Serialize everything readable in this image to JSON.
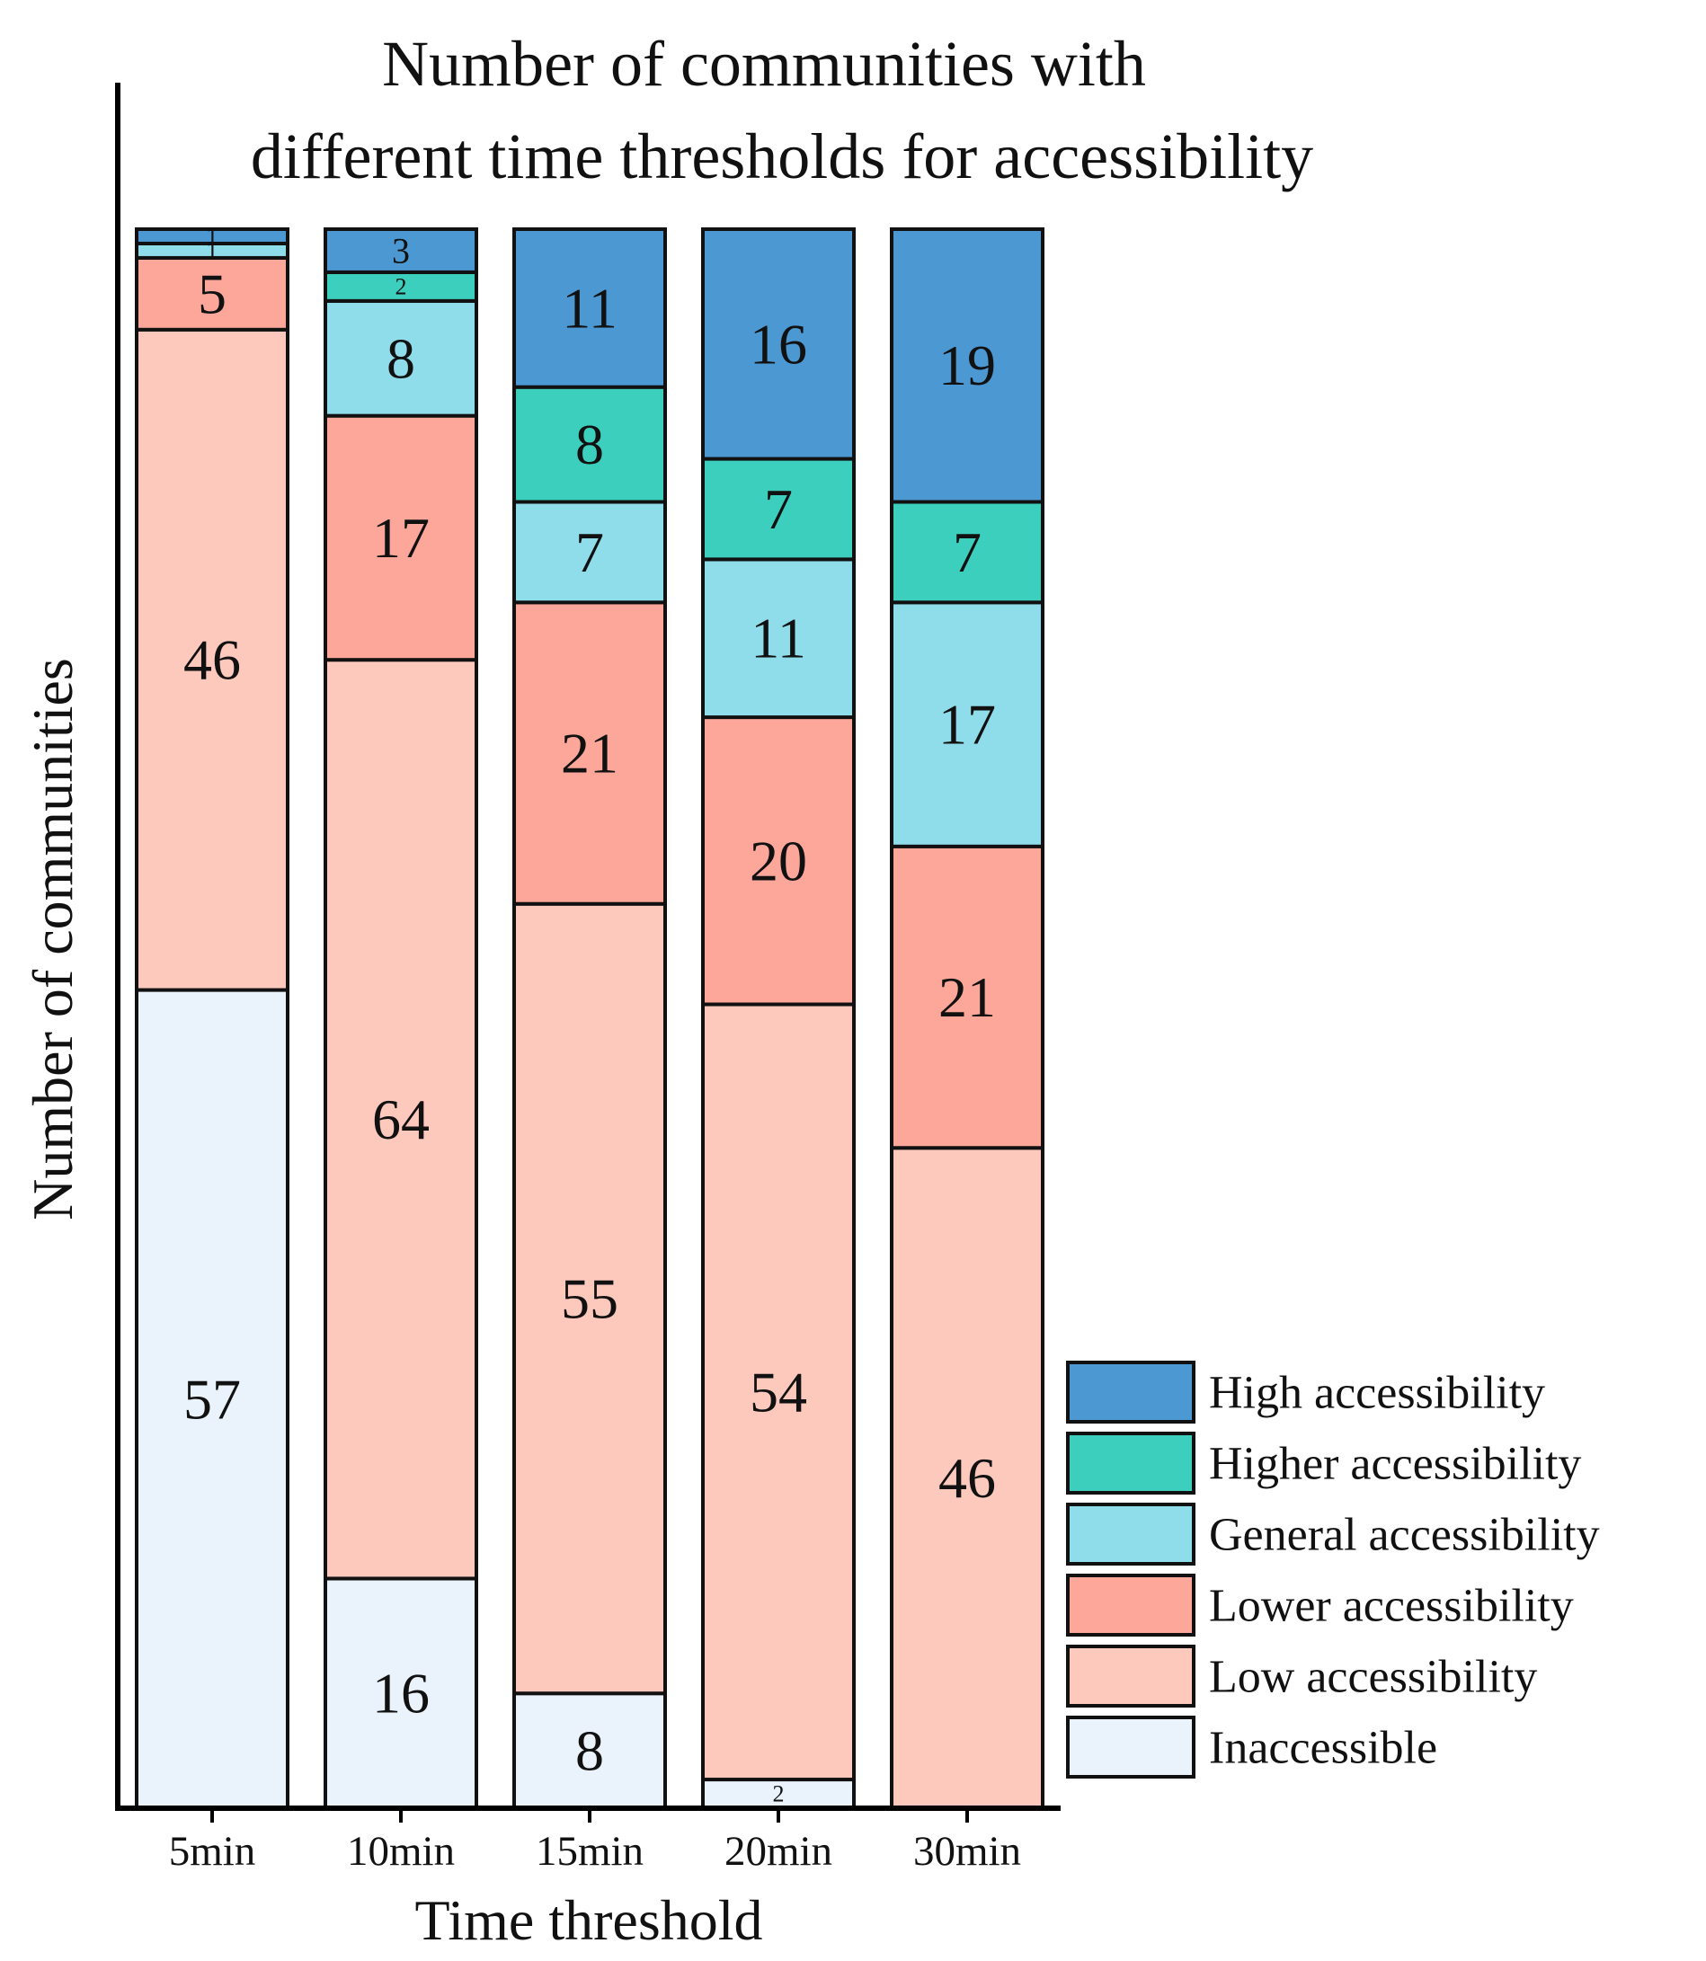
{
  "chart_data": {
    "type": "bar",
    "stacked": true,
    "title": "Number of communities with different time thresholds for accessibility",
    "title_lines": [
      "Number of communities with",
      "different time thresholds for accessibility"
    ],
    "xlabel": "Time threshold",
    "ylabel": "Number of communities",
    "categories": [
      "5min",
      "10min",
      "15min",
      "20min",
      "30min"
    ],
    "series": [
      {
        "name": "Inaccessible",
        "color": "#eaf2fb",
        "values": [
          57,
          16,
          8,
          2,
          0
        ]
      },
      {
        "name": "Low accessibility",
        "color": "#fcc9bc",
        "values": [
          46,
          64,
          55,
          54,
          46
        ]
      },
      {
        "name": "Lower accessibility",
        "color": "#fca79a",
        "values": [
          5,
          17,
          21,
          20,
          21
        ]
      },
      {
        "name": "General accessibility",
        "color": "#8fdcea",
        "values": [
          1,
          8,
          7,
          11,
          17
        ]
      },
      {
        "name": "Higher accessibility",
        "color": "#3ccfbe",
        "values": [
          0,
          2,
          8,
          7,
          7
        ]
      },
      {
        "name": "High accessibility",
        "color": "#4b98d2",
        "values": [
          1,
          3,
          11,
          16,
          19
        ]
      }
    ],
    "legend_order": [
      "High accessibility",
      "Higher accessibility",
      "General accessibility",
      "Lower accessibility",
      "Low accessibility",
      "Inaccessible"
    ],
    "legend_position": "bottom-right",
    "yaxis_ticks": false,
    "grid": false
  }
}
